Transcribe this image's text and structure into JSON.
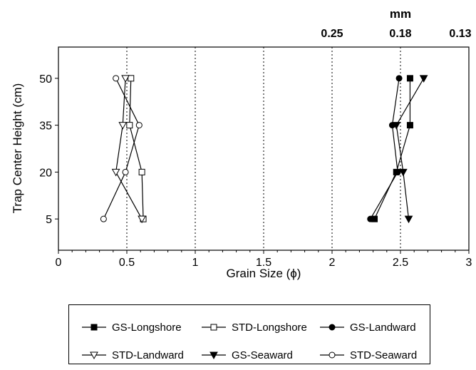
{
  "chart_data": {
    "type": "line",
    "xlabel": "Grain Size (ϕ)",
    "ylabel": "Trap Center Height (cm)",
    "top_axis_label": "mm",
    "top_axis_ticks": [
      {
        "phi": 2.0,
        "label": "0.25"
      },
      {
        "phi": 2.5,
        "label": "0.18"
      },
      {
        "phi": 3.0,
        "label": "0.13"
      }
    ],
    "xlim": [
      0,
      3
    ],
    "x_ticks": [
      0,
      0.5,
      1,
      1.5,
      2,
      2.5,
      3
    ],
    "x_tick_labels": [
      "0",
      "0.5",
      "1",
      "1.5",
      "2",
      "2.5",
      "3"
    ],
    "ylim": [
      -5,
      60
    ],
    "y_ticks": [
      5,
      20,
      35,
      50
    ],
    "y_tick_labels": [
      "5",
      "20",
      "35",
      "50"
    ],
    "vertical_gridlines": [
      0.5,
      1,
      1.5,
      2,
      2.5
    ],
    "legend_position": "bottom",
    "series": [
      {
        "name": "GS-Longshore",
        "marker": "square-filled",
        "x": [
          2.31,
          2.47,
          2.57,
          2.57
        ],
        "y": [
          5,
          20,
          35,
          50
        ]
      },
      {
        "name": "STD-Longshore",
        "marker": "square-open",
        "x": [
          0.62,
          0.61,
          0.52,
          0.53
        ],
        "y": [
          5,
          20,
          35,
          50
        ]
      },
      {
        "name": "GS-Landward",
        "marker": "circle-filled",
        "x": [
          2.28,
          2.48,
          2.44,
          2.49
        ],
        "y": [
          5,
          20,
          35,
          50
        ]
      },
      {
        "name": "STD-Landward",
        "marker": "triangle-down-open",
        "x": [
          0.61,
          0.42,
          0.47,
          0.49
        ],
        "y": [
          5,
          20,
          35,
          50
        ]
      },
      {
        "name": "GS-Seaward",
        "marker": "triangle-down-filled",
        "x": [
          2.56,
          2.52,
          2.47,
          2.67
        ],
        "y": [
          5,
          20,
          35,
          50
        ]
      },
      {
        "name": "STD-Seaward",
        "marker": "circle-open",
        "x": [
          0.33,
          0.49,
          0.59,
          0.42
        ],
        "y": [
          5,
          20,
          35,
          50
        ]
      }
    ]
  }
}
